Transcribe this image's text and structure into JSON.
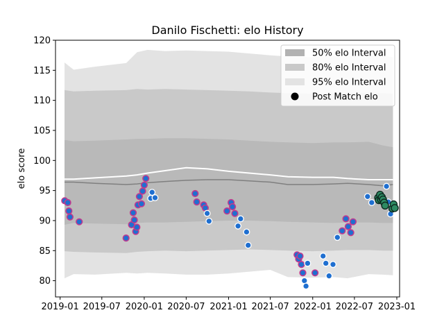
{
  "chart_data": {
    "type": "scatter",
    "title": "Danilo Fischetti: elo History",
    "xlabel": "",
    "ylabel": "elo score",
    "ylim": [
      77.3,
      120.0
    ],
    "xlim": [
      "2018-12-12",
      "2023-01-13"
    ],
    "x_ticks": [
      "2019-01",
      "2019-07",
      "2020-01",
      "2020-07",
      "2021-01",
      "2021-07",
      "2022-01",
      "2022-07",
      "2023-01"
    ],
    "y_ticks": [
      80,
      85,
      90,
      95,
      100,
      105,
      110,
      115,
      120
    ],
    "grid": false,
    "legend_position": "top-right",
    "legend": [
      {
        "label": "50% elo Interval",
        "kind": "band",
        "color": "#b2b2b2"
      },
      {
        "label": "80% elo Interval",
        "kind": "band",
        "color": "#c9c9c9"
      },
      {
        "label": "95% elo Interval",
        "kind": "band",
        "color": "#e3e3e3"
      },
      {
        "label": "Post Match elo",
        "kind": "marker",
        "color": "#000000"
      }
    ],
    "bands": {
      "dates": [
        "2019-01-20",
        "2019-03-01",
        "2019-06-01",
        "2019-10-15",
        "2019-12-01",
        "2020-01-15",
        "2020-04-01",
        "2020-07-01",
        "2020-10-01",
        "2021-01-01",
        "2021-04-01",
        "2021-07-01",
        "2021-09-15",
        "2022-01-01",
        "2022-04-01",
        "2022-06-01",
        "2022-09-01",
        "2022-11-01",
        "2022-12-15"
      ],
      "p95_upper": [
        116.3,
        115.1,
        115.6,
        116.2,
        118.0,
        118.4,
        118.2,
        118.3,
        118.2,
        118.1,
        117.8,
        117.5,
        117.3,
        117.2,
        117.4,
        117.3,
        117.5,
        117.4,
        117.2
      ],
      "p80_upper": [
        111.7,
        111.5,
        111.6,
        111.7,
        111.9,
        111.8,
        111.9,
        111.8,
        111.7,
        111.6,
        111.5,
        111.3,
        111.2,
        111.1,
        111.2,
        111.2,
        111.3,
        111.2,
        111.1
      ],
      "p50_upper": [
        103.4,
        103.2,
        103.3,
        103.5,
        103.6,
        103.6,
        103.7,
        103.7,
        103.6,
        103.5,
        103.3,
        103.1,
        103.0,
        102.9,
        103.0,
        103.0,
        103.1,
        102.5,
        102.2
      ],
      "p50_lower": [
        89.3,
        89.6,
        89.5,
        89.4,
        89.6,
        89.7,
        89.7,
        89.8,
        89.9,
        90.0,
        90.0,
        89.9,
        89.8,
        89.7,
        89.6,
        89.7,
        89.7,
        89.6,
        89.6
      ],
      "p80_lower": [
        84.9,
        84.8,
        84.7,
        84.6,
        84.8,
        84.9,
        85.0,
        84.9,
        85.0,
        85.1,
        85.2,
        85.1,
        85.0,
        84.9,
        85.0,
        85.1,
        85.1,
        85.0,
        85.0
      ],
      "p95_lower": [
        80.4,
        81.1,
        81.0,
        81.3,
        81.2,
        81.3,
        81.2,
        81.0,
        81.0,
        81.2,
        81.5,
        81.8,
        80.6,
        80.5,
        80.6,
        80.4,
        81.1,
        81.0,
        80.9
      ],
      "median": [
        96.4,
        96.4,
        96.2,
        96.0,
        96.1,
        96.3,
        96.5,
        96.7,
        96.8,
        96.8,
        96.6,
        96.4,
        96.0,
        96.0,
        96.1,
        96.2,
        96.0,
        95.8,
        96.0
      ],
      "mean": [
        96.9,
        96.9,
        97.1,
        97.4,
        97.6,
        97.9,
        98.3,
        98.8,
        98.6,
        98.2,
        97.9,
        97.6,
        97.3,
        97.2,
        97.2,
        97.0,
        96.8,
        96.8,
        96.8
      ]
    },
    "series": [
      {
        "marker": "blue-fill-magenta-ring",
        "points": [
          {
            "x": "2019-01-21",
            "y": 93.3
          },
          {
            "x": "2019-02-03",
            "y": 93.0
          },
          {
            "x": "2019-02-08",
            "y": 91.6
          },
          {
            "x": "2019-02-13",
            "y": 90.6
          },
          {
            "x": "2019-03-25",
            "y": 89.8
          },
          {
            "x": "2019-10-14",
            "y": 87.1
          },
          {
            "x": "2019-11-07",
            "y": 89.3
          },
          {
            "x": "2019-11-14",
            "y": 91.3
          },
          {
            "x": "2019-11-19",
            "y": 90.1
          },
          {
            "x": "2019-11-25",
            "y": 88.2
          },
          {
            "x": "2019-11-30",
            "y": 88.9
          },
          {
            "x": "2019-12-05",
            "y": 92.6
          },
          {
            "x": "2019-12-11",
            "y": 94.0
          },
          {
            "x": "2019-12-20",
            "y": 92.8
          },
          {
            "x": "2019-12-25",
            "y": 94.9
          },
          {
            "x": "2020-01-01",
            "y": 95.9
          },
          {
            "x": "2020-01-08",
            "y": 97.0
          },
          {
            "x": "2020-08-09",
            "y": 94.5
          },
          {
            "x": "2020-08-16",
            "y": 93.1
          },
          {
            "x": "2020-09-15",
            "y": 92.6
          },
          {
            "x": "2020-09-22",
            "y": 92.1
          },
          {
            "x": "2020-12-25",
            "y": 91.6
          },
          {
            "x": "2021-01-12",
            "y": 93.0
          },
          {
            "x": "2021-01-18",
            "y": 92.3
          },
          {
            "x": "2021-01-28",
            "y": 91.2
          },
          {
            "x": "2021-10-25",
            "y": 84.3
          },
          {
            "x": "2021-11-01",
            "y": 83.6
          },
          {
            "x": "2021-11-07",
            "y": 84.1
          },
          {
            "x": "2021-11-13",
            "y": 82.7
          },
          {
            "x": "2021-11-19",
            "y": 81.3
          },
          {
            "x": "2022-01-11",
            "y": 81.3
          },
          {
            "x": "2022-05-09",
            "y": 88.3
          },
          {
            "x": "2022-05-25",
            "y": 90.3
          },
          {
            "x": "2022-06-04",
            "y": 89.0
          },
          {
            "x": "2022-06-15",
            "y": 88.0
          },
          {
            "x": "2022-06-25",
            "y": 89.8
          }
        ]
      },
      {
        "marker": "blue-fill-white-ring",
        "points": [
          {
            "x": "2020-01-29",
            "y": 93.7
          },
          {
            "x": "2020-02-04",
            "y": 94.7
          },
          {
            "x": "2020-02-17",
            "y": 93.8
          },
          {
            "x": "2020-09-30",
            "y": 91.2
          },
          {
            "x": "2020-10-08",
            "y": 89.9
          },
          {
            "x": "2021-02-11",
            "y": 89.1
          },
          {
            "x": "2021-02-22",
            "y": 90.3
          },
          {
            "x": "2021-03-20",
            "y": 88.1
          },
          {
            "x": "2021-03-27",
            "y": 85.9
          },
          {
            "x": "2021-11-26",
            "y": 80.0
          },
          {
            "x": "2021-12-03",
            "y": 79.1
          },
          {
            "x": "2021-12-10",
            "y": 82.9
          },
          {
            "x": "2022-02-15",
            "y": 84.1
          },
          {
            "x": "2022-02-27",
            "y": 82.9
          },
          {
            "x": "2022-03-13",
            "y": 80.8
          },
          {
            "x": "2022-03-30",
            "y": 82.7
          },
          {
            "x": "2022-04-18",
            "y": 87.2
          },
          {
            "x": "2022-08-27",
            "y": 94.0
          },
          {
            "x": "2022-09-14",
            "y": 93.0
          },
          {
            "x": "2022-11-17",
            "y": 95.7
          },
          {
            "x": "2022-11-25",
            "y": 93.1
          },
          {
            "x": "2022-12-05",
            "y": 91.1
          }
        ]
      },
      {
        "marker": "green-fill-dark-ring",
        "points": [
          {
            "x": "2022-10-12",
            "y": 93.8
          },
          {
            "x": "2022-10-15",
            "y": 93.4
          },
          {
            "x": "2022-10-20",
            "y": 94.3
          },
          {
            "x": "2022-10-24",
            "y": 93.5
          },
          {
            "x": "2022-10-28",
            "y": 93.9
          },
          {
            "x": "2022-11-02",
            "y": 93.5
          },
          {
            "x": "2022-11-07",
            "y": 93.0
          },
          {
            "x": "2022-11-11",
            "y": 92.5
          },
          {
            "x": "2022-12-13",
            "y": 92.0
          },
          {
            "x": "2022-12-18",
            "y": 92.7
          },
          {
            "x": "2022-12-23",
            "y": 92.1
          }
        ]
      }
    ]
  }
}
